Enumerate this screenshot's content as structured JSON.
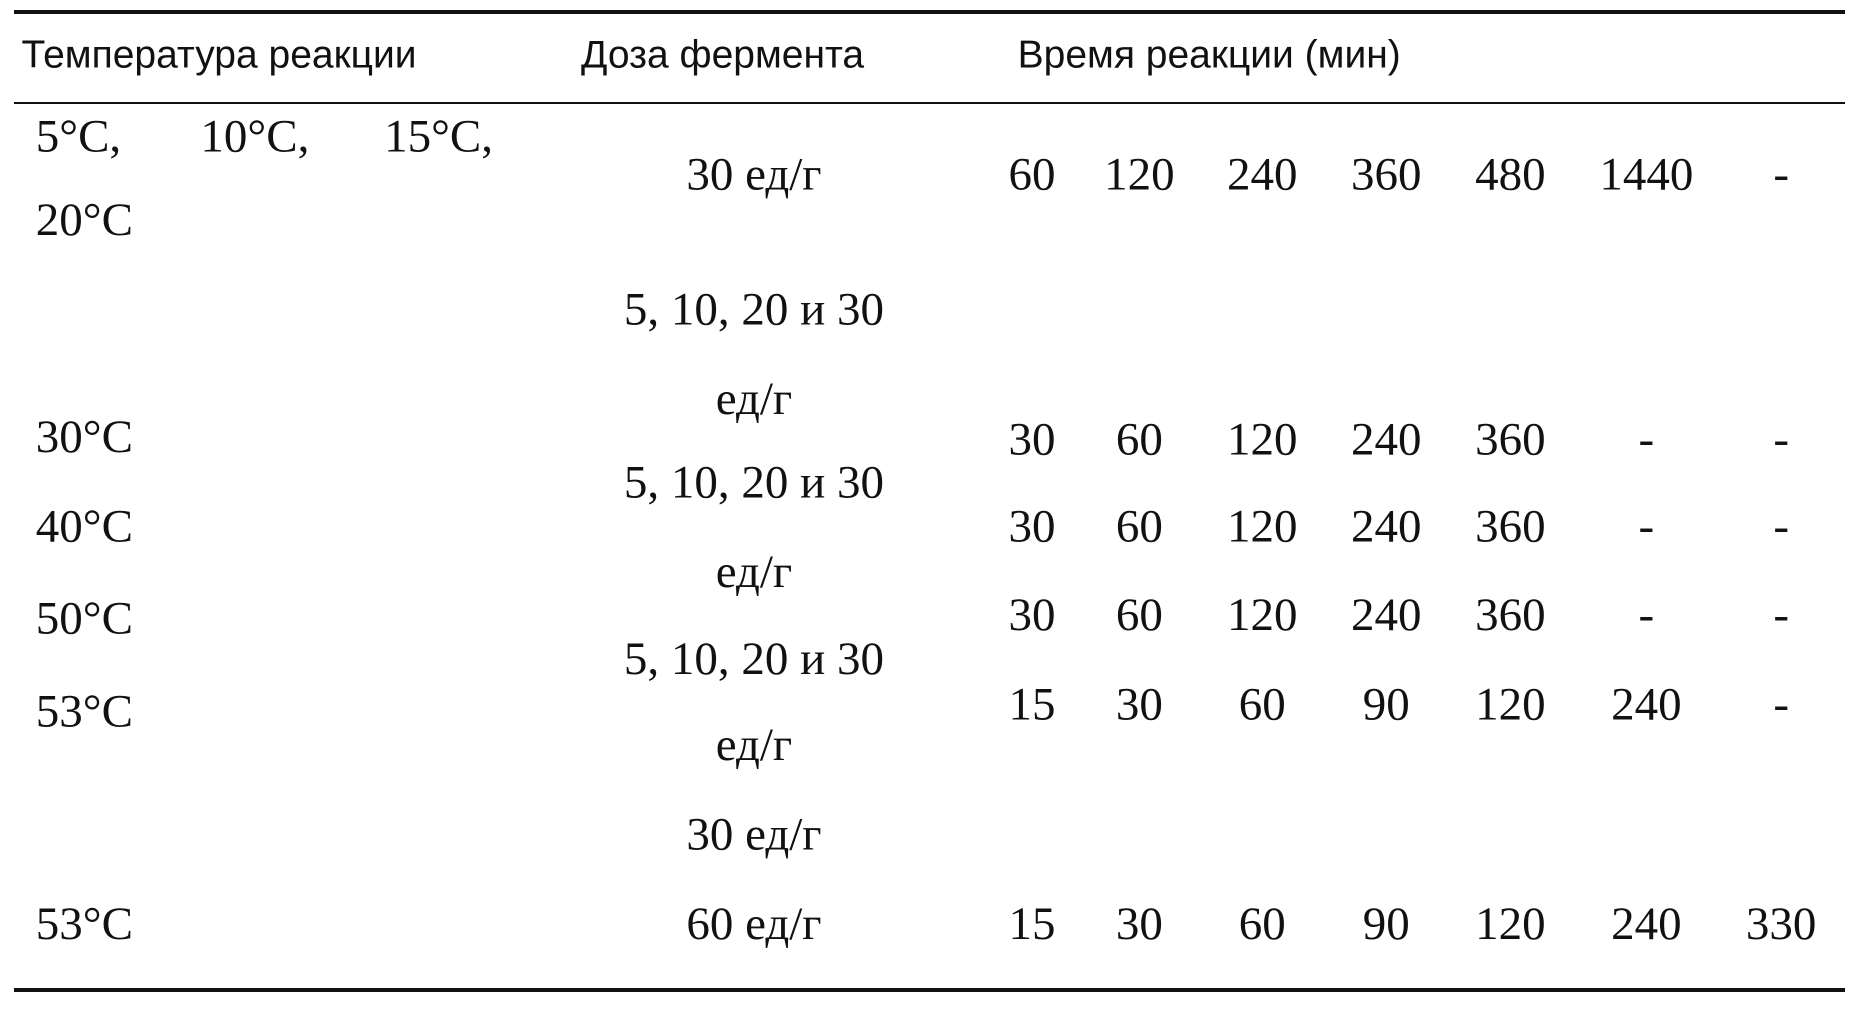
{
  "table": {
    "header": [
      "Температура реакции",
      "Доза фермента",
      "Время реакции (мин)"
    ],
    "temperatures": [
      "5°C,",
      "10°C,",
      "15°C,",
      "20°C",
      "30°C",
      "40°C",
      "50°C",
      "53°C",
      "53°C"
    ],
    "doses": [
      "30 ед/г",
      "5, 10, 20 и 30",
      "ед/г",
      "5, 10, 20 и 30",
      "ед/г",
      "5, 10, 20 и 30",
      "ед/г",
      "30 ед/г",
      "60 ед/г"
    ],
    "times": [
      [
        "60",
        "120",
        "240",
        "360",
        "480",
        "1440",
        "-"
      ],
      [
        "30",
        "60",
        "120",
        "240",
        "360",
        "-",
        "-"
      ],
      [
        "30",
        "60",
        "120",
        "240",
        "360",
        "-",
        "-"
      ],
      [
        "30",
        "60",
        "120",
        "240",
        "360",
        "-",
        "-"
      ],
      [
        "15",
        "30",
        "60",
        "90",
        "120",
        "240",
        "-"
      ],
      [
        "15",
        "30",
        "60",
        "90",
        "120",
        "240",
        "330"
      ]
    ]
  }
}
